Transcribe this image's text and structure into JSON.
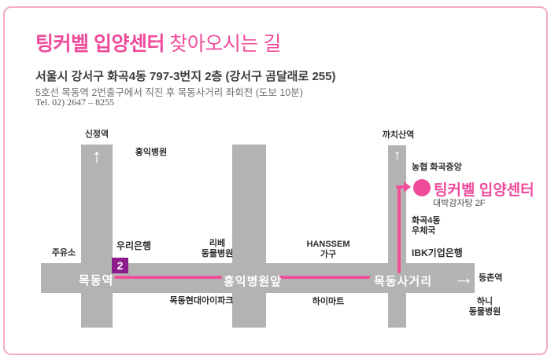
{
  "header": {
    "title_highlight": "팅커벨 입양센터",
    "title_rest": " 찾아오시는 길",
    "address": {
      "pre": "서울시 강서구 화곡4동 ",
      "bold1": "797-3",
      "mid": "번지 ",
      "bold2": "2",
      "post": "층 (강서구 곰달래로 255)"
    },
    "directions": "5호선 목동역 2번출구에서 직진 후 목동사거리 좌회전 (도보 10분)",
    "tel": "Tel. 02) 2647 – 8255"
  },
  "map": {
    "stations": {
      "sinjeong": "신정역",
      "kkachisan": "까치산역",
      "mokdong": "목동역",
      "hongik_stop": "홍익병원앞",
      "mokdong_crossing": "목동사거리",
      "deungchon": "등촌역"
    },
    "landmarks": {
      "hongik_hospital": "홍익병원",
      "nonghyup": "농협 화곡중앙",
      "center_name": "팅커벨 입양센터",
      "center_sub": "대박감자탕 2F",
      "post_office_1": "화곡4동",
      "post_office_2": "우체국",
      "ibk": "IBK기업은행",
      "gas_station": "주유소",
      "woori_bank": "우리은행",
      "libe_1": "리베",
      "libe_2": "동물병원",
      "hanssem_1": "HANSSEM",
      "hanssem_2": "가구",
      "hyundai_ipark": "목동현대아이파크",
      "himart": "하이마트",
      "hani_1": "하니",
      "hani_2": "동물병원"
    },
    "exit_number": "2",
    "icons": {
      "up_arrow": "↑",
      "right_arrow": "→"
    }
  },
  "colors": {
    "accent_pink": "#ee4b9b",
    "route_pink": "#f0509a",
    "border_pink": "#f3aacb",
    "road_gray": "#b3b3b3",
    "exit_purple": "#8c1b8c",
    "text_dark": "#2e2e2e"
  }
}
